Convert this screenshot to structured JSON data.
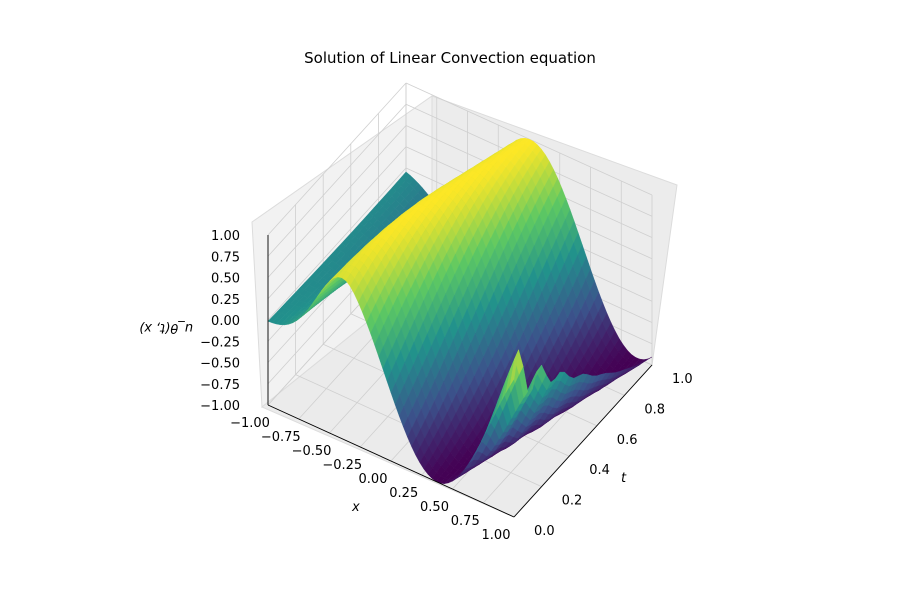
{
  "chart_data": {
    "type": "surface3d",
    "title": "Solution of Linear Convection equation",
    "xlabel": "x",
    "ylabel": "t",
    "zlabel": "u_θ(t, x)",
    "xlim": [
      -1.0,
      1.0
    ],
    "tlim": [
      0.0,
      1.0
    ],
    "zlim": [
      -1.0,
      1.0
    ],
    "x_ticks": [
      "−1.00",
      "−0.75",
      "−0.50",
      "−0.25",
      "0.00",
      "0.25",
      "0.50",
      "0.75",
      "1.00"
    ],
    "t_ticks": [
      "0.0",
      "0.2",
      "0.4",
      "0.6",
      "0.8",
      "1.0"
    ],
    "z_ticks": [
      "−1.00",
      "−0.75",
      "−0.50",
      "−0.25",
      "0.00",
      "0.25",
      "0.50",
      "0.75",
      "1.00"
    ],
    "colormap": "viridis",
    "grid": true,
    "surface": {
      "description_of_shape": "u(t,x) ≈ −sin(π(x − c·t)), flat near 0 for negative x, one trough near x≈0.25 and one crest near x≈−0.5, oscillating near t=0, x≈1",
      "approximate_extremes": {
        "min": -1.0,
        "max": 1.0
      }
    }
  }
}
